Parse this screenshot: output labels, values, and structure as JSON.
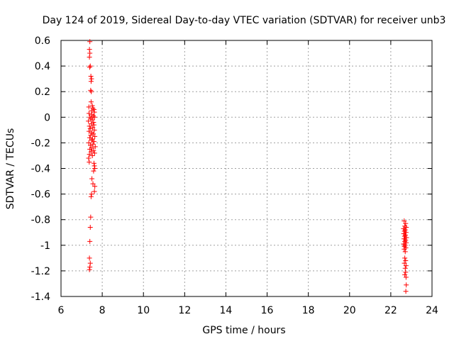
{
  "chart_data": {
    "type": "scatter",
    "title": "Day 124 of 2019, Sidereal Day-to-day VTEC variation (SDTVAR) for receiver unb3",
    "xlabel": "GPS time / hours",
    "ylabel": "SDTVAR / TECUs",
    "xlim": [
      6,
      24
    ],
    "ylim": [
      -1.4,
      0.6
    ],
    "xticks": [
      "6",
      "8",
      "10",
      "12",
      "14",
      "16",
      "18",
      "20",
      "22",
      "24"
    ],
    "yticks": [
      "0.6",
      "0.4",
      "0.2",
      "0",
      "-0.2",
      "-0.4",
      "-0.6",
      "-0.8",
      "-1",
      "-1.2",
      "-1.4"
    ],
    "grid": true,
    "marker": "+",
    "color": "#ff0000",
    "series": [
      {
        "name": "SDTVAR",
        "points": [
          [
            7.4,
            0.59
          ],
          [
            7.38,
            0.53
          ],
          [
            7.4,
            0.5
          ],
          [
            7.38,
            0.47
          ],
          [
            7.42,
            0.4
          ],
          [
            7.39,
            0.39
          ],
          [
            7.45,
            0.32
          ],
          [
            7.48,
            0.3
          ],
          [
            7.46,
            0.28
          ],
          [
            7.44,
            0.21
          ],
          [
            7.47,
            0.2
          ],
          [
            7.46,
            0.12
          ],
          [
            7.35,
            0.08
          ],
          [
            7.52,
            0.09
          ],
          [
            7.55,
            0.07
          ],
          [
            7.6,
            0.06
          ],
          [
            7.48,
            0.05
          ],
          [
            7.62,
            0.04
          ],
          [
            7.36,
            0.03
          ],
          [
            7.5,
            0.02
          ],
          [
            7.57,
            0.01
          ],
          [
            7.4,
            0.0
          ],
          [
            7.63,
            0.0
          ],
          [
            7.45,
            -0.01
          ],
          [
            7.52,
            -0.02
          ],
          [
            7.33,
            -0.03
          ],
          [
            7.58,
            -0.04
          ],
          [
            7.47,
            -0.05
          ],
          [
            7.6,
            -0.06
          ],
          [
            7.38,
            -0.07
          ],
          [
            7.54,
            -0.08
          ],
          [
            7.42,
            -0.09
          ],
          [
            7.62,
            -0.1
          ],
          [
            7.36,
            -0.11
          ],
          [
            7.5,
            -0.12
          ],
          [
            7.57,
            -0.13
          ],
          [
            7.44,
            -0.14
          ],
          [
            7.64,
            -0.15
          ],
          [
            7.39,
            -0.16
          ],
          [
            7.53,
            -0.17
          ],
          [
            7.48,
            -0.18
          ],
          [
            7.6,
            -0.19
          ],
          [
            7.35,
            -0.2
          ],
          [
            7.55,
            -0.21
          ],
          [
            7.43,
            -0.22
          ],
          [
            7.66,
            -0.23
          ],
          [
            7.5,
            -0.24
          ],
          [
            7.4,
            -0.25
          ],
          [
            7.58,
            -0.26
          ],
          [
            7.46,
            -0.27
          ],
          [
            7.63,
            -0.28
          ],
          [
            7.38,
            -0.29
          ],
          [
            7.52,
            -0.3
          ],
          [
            7.34,
            -0.32
          ],
          [
            7.37,
            -0.35
          ],
          [
            7.6,
            -0.36
          ],
          [
            7.62,
            -0.38
          ],
          [
            7.64,
            -0.4
          ],
          [
            7.58,
            -0.42
          ],
          [
            7.5,
            -0.48
          ],
          [
            7.55,
            -0.52
          ],
          [
            7.64,
            -0.54
          ],
          [
            7.62,
            -0.58
          ],
          [
            7.48,
            -0.6
          ],
          [
            7.46,
            -0.62
          ],
          [
            7.44,
            -0.78
          ],
          [
            7.42,
            -0.86
          ],
          [
            7.4,
            -0.97
          ],
          [
            7.38,
            -1.1
          ],
          [
            7.42,
            -1.14
          ],
          [
            7.4,
            -1.17
          ],
          [
            7.38,
            -1.19
          ],
          [
            22.65,
            -0.81
          ],
          [
            22.72,
            -0.83
          ],
          [
            22.68,
            -0.85
          ],
          [
            22.75,
            -0.86
          ],
          [
            22.62,
            -0.87
          ],
          [
            22.7,
            -0.88
          ],
          [
            22.66,
            -0.89
          ],
          [
            22.74,
            -0.9
          ],
          [
            22.63,
            -0.91
          ],
          [
            22.71,
            -0.92
          ],
          [
            22.67,
            -0.93
          ],
          [
            22.76,
            -0.94
          ],
          [
            22.64,
            -0.95
          ],
          [
            22.72,
            -0.96
          ],
          [
            22.68,
            -0.97
          ],
          [
            22.75,
            -0.98
          ],
          [
            22.62,
            -0.99
          ],
          [
            22.7,
            -1.0
          ],
          [
            22.66,
            -1.01
          ],
          [
            22.73,
            -1.02
          ],
          [
            22.65,
            -1.03
          ],
          [
            22.7,
            -1.05
          ],
          [
            22.68,
            -1.1
          ],
          [
            22.72,
            -1.12
          ],
          [
            22.66,
            -1.14
          ],
          [
            22.74,
            -1.16
          ],
          [
            22.7,
            -1.18
          ],
          [
            22.72,
            -1.21
          ],
          [
            22.68,
            -1.23
          ],
          [
            22.74,
            -1.25
          ],
          [
            22.75,
            -1.31
          ],
          [
            22.73,
            -1.36
          ]
        ]
      }
    ]
  }
}
